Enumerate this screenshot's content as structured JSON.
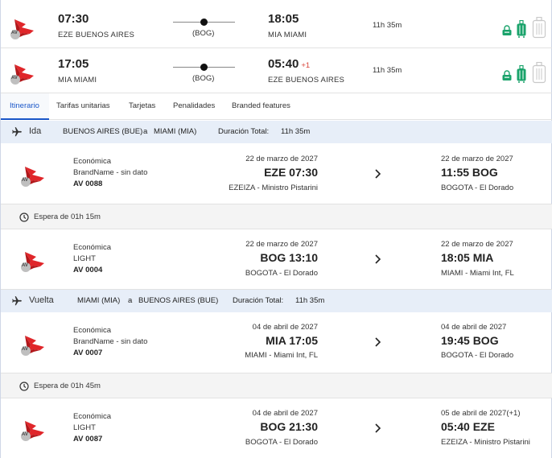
{
  "summary": [
    {
      "airline_logo": "avianca-logo",
      "logo_badge": "AV",
      "dep_time": "07:30",
      "dep_city": "EZE BUENOS AIRES",
      "stop": "(BOG)",
      "arr_time": "18:05",
      "arr_day_offset": "",
      "arr_city": "MIA MIAMI",
      "duration": "11h 35m",
      "bags": [
        "personal-item-icon",
        "carry-on-icon",
        "checked-bag-icon"
      ]
    },
    {
      "airline_logo": "avianca-logo",
      "logo_badge": "AV",
      "dep_time": "17:05",
      "dep_city": "MIA MIAMI",
      "stop": "(BOG)",
      "arr_time": "05:40",
      "arr_day_offset": "+1",
      "arr_city": "EZE BUENOS AIRES",
      "duration": "11h 35m",
      "bags": [
        "personal-item-icon",
        "carry-on-icon",
        "checked-bag-icon"
      ]
    }
  ],
  "tabs": [
    {
      "label": "Itinerario",
      "active": true
    },
    {
      "label": "Tarifas unitarias",
      "active": false
    },
    {
      "label": "Tarjetas",
      "active": false
    },
    {
      "label": "Penalidades",
      "active": false
    },
    {
      "label": "Branded features",
      "active": false
    }
  ],
  "outbound": {
    "label": "Ida",
    "route_from": "BUENOS AIRES (BUE)",
    "route_sep": "a",
    "route_to": "MIAMI (MIA)",
    "duration_label": "Duración Total:",
    "duration": "11h 35m"
  },
  "inbound": {
    "label": "Vuelta",
    "route_from": "MIAMI (MIA)",
    "route_sep": "a",
    "route_to": "BUENOS AIRES (BUE)",
    "duration_label": "Duración Total:",
    "duration": "11h 35m"
  },
  "segments": [
    {
      "logo_badge": "AV",
      "cabin": "Económica",
      "brand": "BrandName - sin dato",
      "flight": "AV 0088",
      "dep_date": "22 de marzo de 2027",
      "dep_time": "EZE 07:30",
      "dep_airport": "EZEIZA - Ministro Pistarini",
      "arr_date": "22 de marzo de 2027",
      "arr_time": "11:55 BOG",
      "arr_airport": "BOGOTA - El Dorado"
    },
    {
      "logo_badge": "AV",
      "cabin": "Económica",
      "brand": "LIGHT",
      "flight": "AV 0004",
      "dep_date": "22 de marzo de 2027",
      "dep_time": "BOG 13:10",
      "dep_airport": "BOGOTA - El Dorado",
      "arr_date": "22 de marzo de 2027",
      "arr_time": "18:05 MIA",
      "arr_airport": "MIAMI - Miami Int, FL"
    },
    {
      "logo_badge": "AV",
      "cabin": "Económica",
      "brand": "BrandName - sin dato",
      "flight": "AV 0007",
      "dep_date": "04 de abril de 2027",
      "dep_time": "MIA 17:05",
      "dep_airport": "MIAMI - Miami Int, FL",
      "arr_date": "04 de abril de 2027",
      "arr_time": "19:45 BOG",
      "arr_airport": "BOGOTA - El Dorado"
    },
    {
      "logo_badge": "AV",
      "cabin": "Económica",
      "brand": "LIGHT",
      "flight": "AV 0087",
      "dep_date": "04 de abril de 2027",
      "dep_time": "BOG 21:30",
      "dep_airport": "BOGOTA - El Dorado",
      "arr_date": "05 de abril de 2027(+1)",
      "arr_time": "05:40 EZE",
      "arr_airport": "EZEIZA - Ministro Pistarini"
    }
  ],
  "layovers": [
    {
      "text": "Espera de 01h 15m"
    },
    {
      "text": "Espera de 01h 45m"
    }
  ],
  "colors": {
    "accent": "#1a56c8",
    "logo_red": "#e0262a",
    "bag_green": "#1aa36b",
    "day_offset": "#d9443a",
    "direction_bar": "#e7eef8"
  }
}
